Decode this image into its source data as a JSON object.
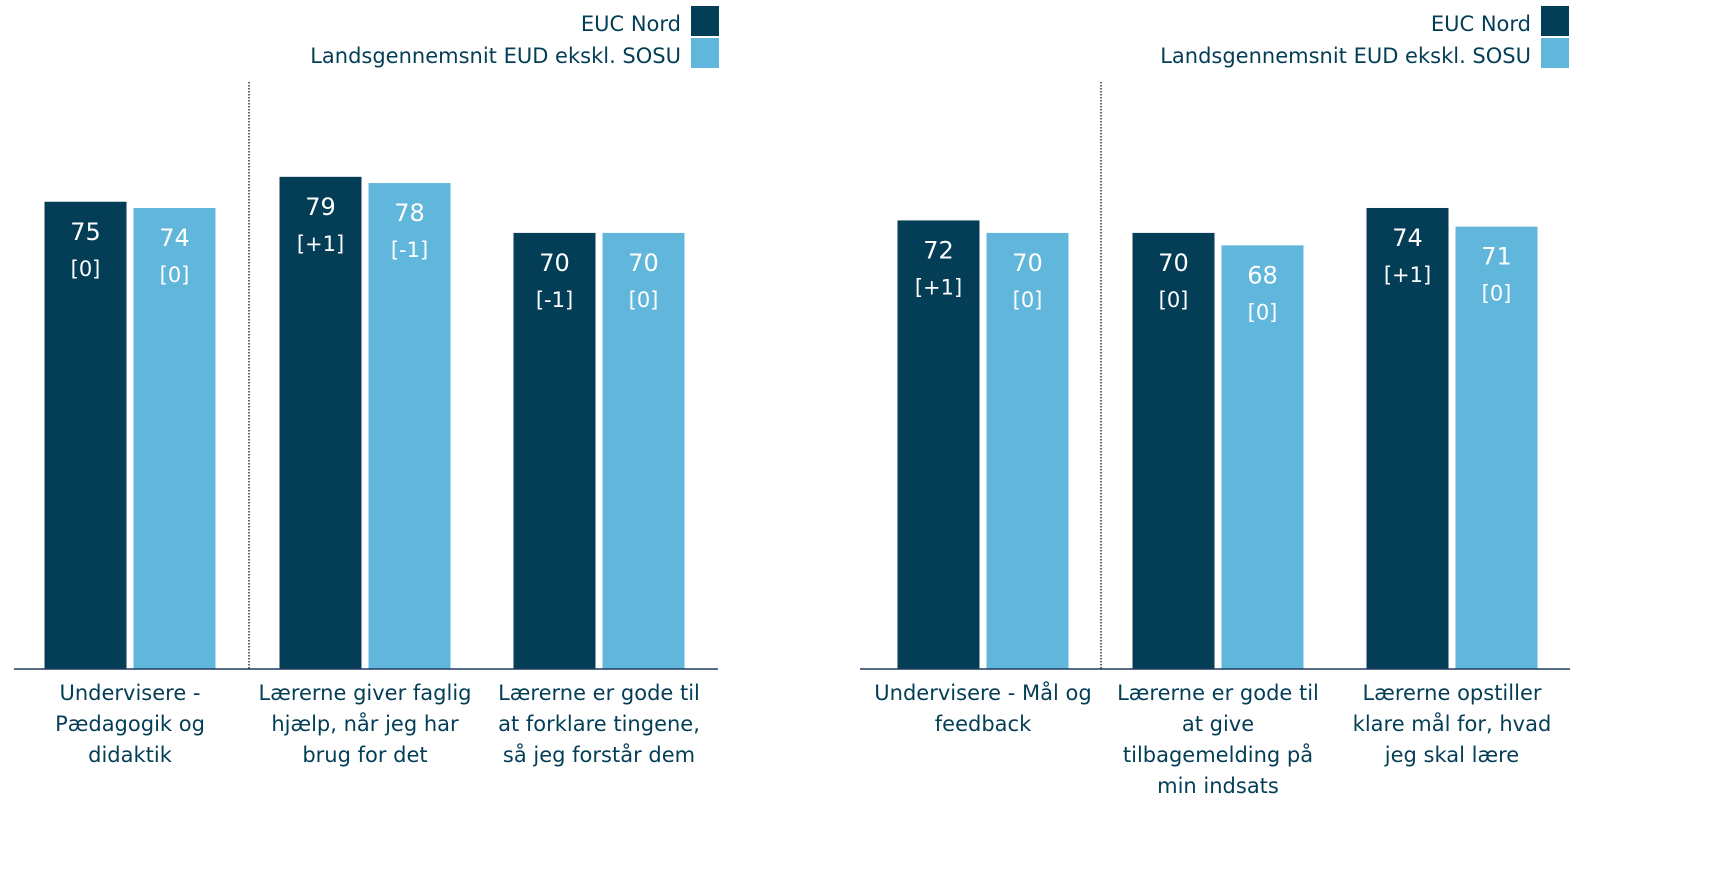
{
  "colors": {
    "euc_nord": "#033e56",
    "landsgennemsnit": "#61b6dc",
    "axis": "#1f3a5f",
    "label_text": "#033e56",
    "value_text": "#ffffff",
    "divider": "#333333"
  },
  "chart_data": [
    {
      "type": "bar",
      "legend": [
        "EUC Nord",
        "Landsgennemsnit EUD ekskl. SOSU"
      ],
      "legend_position": "top-right",
      "ylim": [
        0,
        100
      ],
      "grid": false,
      "categories": [
        [
          "Undervisere -",
          "Pædagogik og",
          "didaktik"
        ],
        [
          "Lærerne giver faglig",
          "hjælp, når jeg har",
          "brug for det"
        ],
        [
          "Lærerne er gode til",
          "at forklare tingene,",
          "så jeg forstår dem"
        ]
      ],
      "series": [
        {
          "name": "EUC Nord",
          "values": [
            75,
            79,
            70
          ],
          "changes": [
            "[0]",
            "[+1]",
            "[-1]"
          ]
        },
        {
          "name": "Landsgennemsnit EUD ekskl. SOSU",
          "values": [
            74,
            78,
            70
          ],
          "changes": [
            "[0]",
            "[-1]",
            "[0]"
          ]
        }
      ]
    },
    {
      "type": "bar",
      "legend": [
        "EUC Nord",
        "Landsgennemsnit EUD ekskl. SOSU"
      ],
      "legend_position": "top-right",
      "ylim": [
        0,
        100
      ],
      "grid": false,
      "categories": [
        [
          "Undervisere - Mål og",
          "feedback"
        ],
        [
          "Lærerne er gode til",
          "at give",
          "tilbagemelding på",
          "min indsats"
        ],
        [
          "Lærerne opstiller",
          "klare mål for, hvad",
          "jeg skal lære"
        ]
      ],
      "series": [
        {
          "name": "EUC Nord",
          "values": [
            72,
            70,
            74
          ],
          "changes": [
            "[+1]",
            "[0]",
            "[+1]"
          ]
        },
        {
          "name": "Landsgennemsnit EUD ekskl. SOSU",
          "values": [
            70,
            68,
            71
          ],
          "changes": [
            "[0]",
            "[0]",
            "[0]"
          ]
        }
      ]
    }
  ]
}
